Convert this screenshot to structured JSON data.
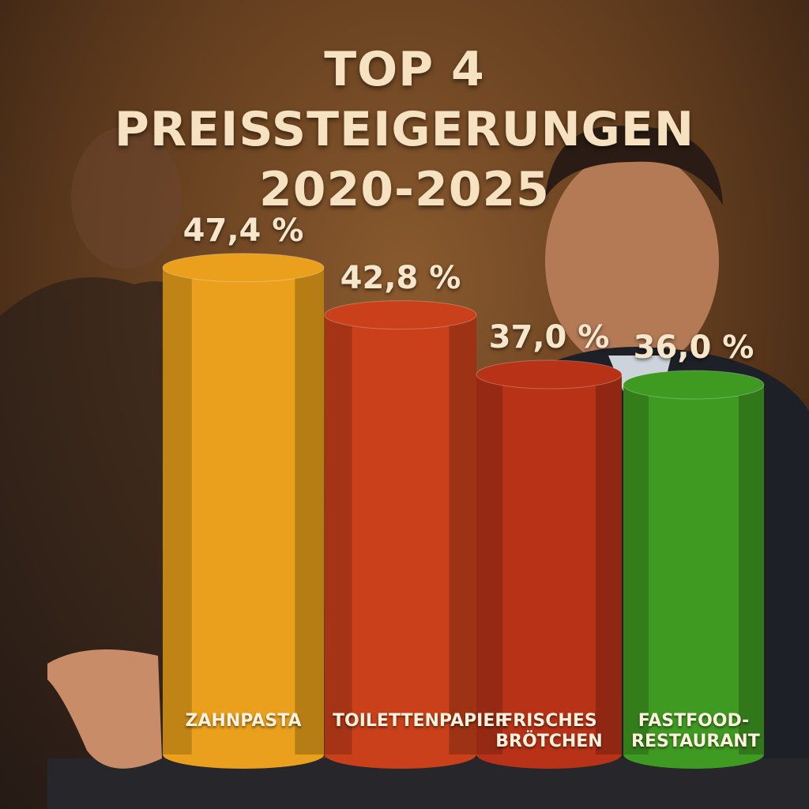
{
  "chart_data": {
    "type": "bar",
    "title": "TOP 4 PREISSTEIGERUNGEN 2020-2025",
    "categories": [
      "ZAHNPASTA",
      "TOILETTENPAPIER",
      "FRISCHES BRÖTCHEN",
      "FASTFOOD-RESTAURANT"
    ],
    "values": [
      47.4,
      42.8,
      37.0,
      36.0
    ],
    "value_labels": [
      "47,4 %",
      "42,8 %",
      "37,0 %",
      "36,0 %"
    ],
    "colors": [
      "#eaa01c",
      "#c9401a",
      "#b83218",
      "#3f9a22"
    ]
  }
}
